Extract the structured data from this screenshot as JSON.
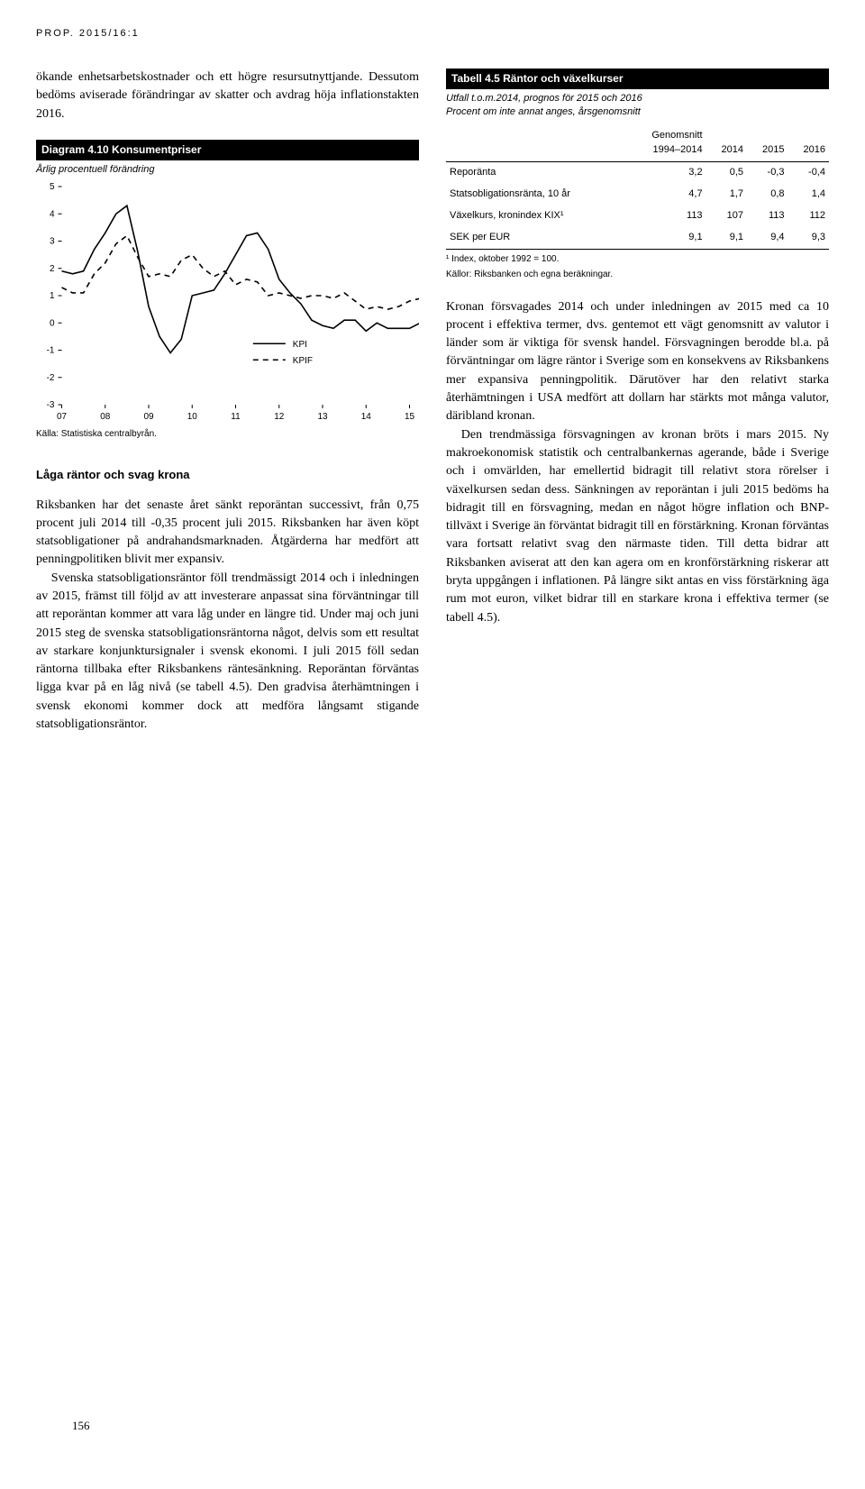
{
  "page_header": "PROP. 2015/16:1",
  "page_number": "156",
  "left": {
    "intro": "ökande enhetsarbetskostnader och ett högre resursutnyttjande. Dessutom bedöms aviserade förändringar av skatter och avdrag höja inflationstakten 2016.",
    "diagram": {
      "title": "Diagram 4.10 Konsumentpriser",
      "subtitle": "Årlig procentuell förändring",
      "source": "Källa: Statistiska centralbyrån.",
      "type": "line",
      "ylim": [
        -3,
        5
      ],
      "ytick_step": 1,
      "yticks": [
        -3,
        -2,
        -1,
        0,
        1,
        2,
        3,
        4,
        5
      ],
      "xlim": [
        2007,
        2015
      ],
      "xticks": [
        "07",
        "08",
        "09",
        "10",
        "11",
        "12",
        "13",
        "14",
        "15"
      ],
      "background_color": "#ffffff",
      "axis_color": "#000000",
      "grid": false,
      "line_width": 1.6,
      "series": [
        {
          "name": "KPI",
          "color": "#000000",
          "dash": "solid",
          "points": [
            [
              2007.0,
              1.9
            ],
            [
              2007.25,
              1.8
            ],
            [
              2007.5,
              1.9
            ],
            [
              2007.75,
              2.7
            ],
            [
              2008.0,
              3.3
            ],
            [
              2008.25,
              4.0
            ],
            [
              2008.5,
              4.3
            ],
            [
              2008.75,
              2.6
            ],
            [
              2009.0,
              0.6
            ],
            [
              2009.25,
              -0.5
            ],
            [
              2009.5,
              -1.1
            ],
            [
              2009.75,
              -0.6
            ],
            [
              2010.0,
              1.0
            ],
            [
              2010.25,
              1.1
            ],
            [
              2010.5,
              1.2
            ],
            [
              2010.75,
              1.8
            ],
            [
              2011.0,
              2.5
            ],
            [
              2011.25,
              3.2
            ],
            [
              2011.5,
              3.3
            ],
            [
              2011.75,
              2.7
            ],
            [
              2012.0,
              1.6
            ],
            [
              2012.25,
              1.1
            ],
            [
              2012.5,
              0.7
            ],
            [
              2012.75,
              0.1
            ],
            [
              2013.0,
              -0.1
            ],
            [
              2013.25,
              -0.2
            ],
            [
              2013.5,
              0.1
            ],
            [
              2013.75,
              0.1
            ],
            [
              2014.0,
              -0.3
            ],
            [
              2014.25,
              0.0
            ],
            [
              2014.5,
              -0.2
            ],
            [
              2014.75,
              -0.2
            ],
            [
              2015.0,
              -0.2
            ],
            [
              2015.25,
              0.0
            ],
            [
              2015.5,
              -0.1
            ]
          ]
        },
        {
          "name": "KPIF",
          "color": "#000000",
          "dash": "dashed",
          "points": [
            [
              2007.0,
              1.3
            ],
            [
              2007.25,
              1.1
            ],
            [
              2007.5,
              1.1
            ],
            [
              2007.75,
              1.8
            ],
            [
              2008.0,
              2.2
            ],
            [
              2008.25,
              2.9
            ],
            [
              2008.5,
              3.2
            ],
            [
              2008.75,
              2.4
            ],
            [
              2009.0,
              1.7
            ],
            [
              2009.25,
              1.8
            ],
            [
              2009.5,
              1.7
            ],
            [
              2009.75,
              2.3
            ],
            [
              2010.0,
              2.5
            ],
            [
              2010.25,
              2.0
            ],
            [
              2010.5,
              1.7
            ],
            [
              2010.75,
              1.9
            ],
            [
              2011.0,
              1.4
            ],
            [
              2011.25,
              1.6
            ],
            [
              2011.5,
              1.5
            ],
            [
              2011.75,
              1.0
            ],
            [
              2012.0,
              1.1
            ],
            [
              2012.25,
              1.0
            ],
            [
              2012.5,
              0.9
            ],
            [
              2012.75,
              1.0
            ],
            [
              2013.0,
              1.0
            ],
            [
              2013.25,
              0.9
            ],
            [
              2013.5,
              1.1
            ],
            [
              2013.75,
              0.8
            ],
            [
              2014.0,
              0.5
            ],
            [
              2014.25,
              0.6
            ],
            [
              2014.5,
              0.5
            ],
            [
              2014.75,
              0.6
            ],
            [
              2015.0,
              0.8
            ],
            [
              2015.25,
              0.9
            ],
            [
              2015.5,
              0.8
            ]
          ]
        }
      ],
      "legend_position": "bottom-right-inside"
    },
    "section_title": "Låga räntor och svag krona",
    "para1": "Riksbanken har det senaste året sänkt reporäntan successivt, från 0,75 procent juli 2014 till -0,35 procent juli 2015. Riksbanken har även köpt statsobligationer på andrahandsmarknaden. Åtgärderna har medfört att penningpolitiken blivit mer expansiv.",
    "para2": "Svenska statsobligationsräntor föll trendmässigt 2014 och i inledningen av 2015, främst till följd av att investerare anpassat sina förväntningar till att reporäntan kommer att vara låg under en längre tid. Under maj och juni 2015 steg de svenska statsobligationsräntorna något, delvis som ett resultat av starkare konjunktursignaler i svensk ekonomi. I juli 2015 föll sedan räntorna tillbaka efter Riksbankens räntesänkning. Reporäntan förväntas ligga kvar på en låg nivå (se tabell 4.5). Den gradvisa återhämtningen i svensk ekonomi kommer dock att medföra långsamt stigande statsobligationsräntor."
  },
  "right": {
    "table": {
      "title": "Tabell 4.5 Räntor och växelkurser",
      "subtitle": "Utfall t.o.m.2014, prognos för 2015 och 2016\nProcent om inte annat anges, årsgenomsnitt",
      "columns": [
        "",
        "Genomsnitt\n1994–2014",
        "2014",
        "2015",
        "2016"
      ],
      "rows": [
        [
          "Reporänta",
          "3,2",
          "0,5",
          "-0,3",
          "-0,4"
        ],
        [
          "Statsobligationsränta, 10 år",
          "4,7",
          "1,7",
          "0,8",
          "1,4"
        ],
        [
          "Växelkurs, kronindex KIX¹",
          "113",
          "107",
          "113",
          "112"
        ],
        [
          "SEK per EUR",
          "9,1",
          "9,1",
          "9,4",
          "9,3"
        ]
      ],
      "note1": "¹ Index, oktober 1992 = 100.",
      "note2": "Källor: Riksbanken och egna beräkningar."
    },
    "para1": "Kronan försvagades 2014 och under inledningen av 2015 med ca 10 procent i effektiva termer, dvs. gentemot ett vägt genomsnitt av valutor i länder som är viktiga för svensk handel. Försvagningen berodde bl.a. på förväntningar om lägre räntor i Sverige som en konsekvens av Riksbankens mer expansiva penningpolitik. Därutöver har den relativt starka återhämtningen i USA medfört att dollarn har stärkts mot många valutor, däribland kronan.",
    "para2": "Den trendmässiga försvagningen av kronan bröts i mars 2015. Ny makroekonomisk statistik och centralbankernas agerande, både i Sverige och i omvärlden, har emellertid bidragit till relativt stora rörelser i växelkursen sedan dess. Sänkningen av reporäntan i juli 2015 bedöms ha bidragit till en försvagning, medan en något högre inflation och BNP-tillväxt i Sverige än förväntat bidragit till en förstärkning. Kronan förväntas vara fortsatt relativt svag den närmaste tiden. Till detta bidrar att Riksbanken aviserat att den kan agera om en kronförstärkning riskerar att bryta uppgången i inflationen. På längre sikt antas en viss förstärkning äga rum mot euron, vilket bidrar till en starkare krona i effektiva termer (se tabell 4.5)."
  }
}
